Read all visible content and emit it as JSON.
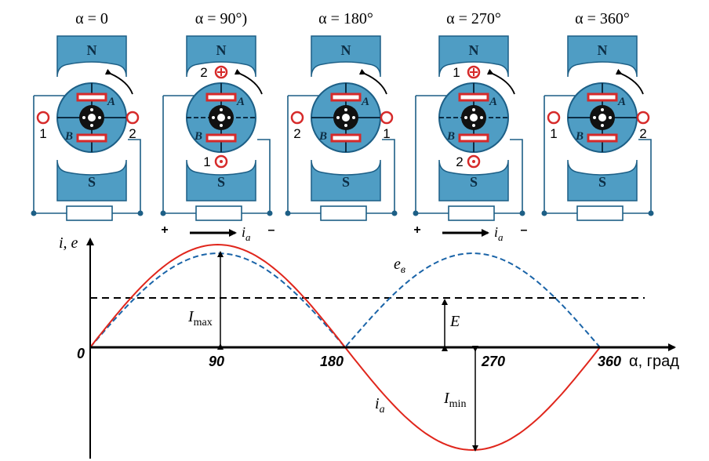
{
  "colors": {
    "machine_fill": "#4f9dc4",
    "machine_fill_light": "#7fbfe0",
    "machine_stroke": "#1d5f86",
    "wire": "#1d5f86",
    "brush": "#d62a2a",
    "current": "#e0261c",
    "emf": "#1a64a8",
    "axis": "#000000"
  },
  "panels": [
    {
      "alpha": "α = 0",
      "pole_n": "N",
      "pole_s": "S",
      "coil_a": "A",
      "coil_b": "B",
      "left_num": "1",
      "right_num": "2"
    },
    {
      "alpha": "α = 90°)",
      "pole_n": "N",
      "pole_s": "S",
      "coil_a": "A",
      "coil_b": "B",
      "top_num": "2",
      "bottom_num": "1",
      "plus": "+",
      "minus": "–",
      "current_label": "i",
      "current_sub": "a"
    },
    {
      "alpha": "α = 180°",
      "pole_n": "N",
      "pole_s": "S",
      "coil_a": "A",
      "coil_b": "B",
      "left_num": "2",
      "right_num": "1"
    },
    {
      "alpha": "α = 270°",
      "pole_n": "N",
      "pole_s": "S",
      "coil_a": "A",
      "coil_b": "B",
      "top_num": "1",
      "bottom_num": "2",
      "plus": "+",
      "minus": "–",
      "current_label": "i",
      "current_sub": "a"
    },
    {
      "alpha": "α = 360°",
      "pole_n": "N",
      "pole_s": "S",
      "coil_a": "A",
      "coil_b": "B",
      "left_num": "1",
      "right_num": "2"
    }
  ],
  "graph": {
    "y_axis_label": "i, e",
    "x_axis_label": "α, град",
    "origin_label": "0",
    "x_ticks": [
      "90",
      "180",
      "270",
      "360"
    ],
    "imax_label": "I",
    "imax_sub": "max",
    "imin_label": "I",
    "imin_sub": "min",
    "e_label": "E",
    "ev_label": "e",
    "ev_sub": "в",
    "ia_label": "i",
    "ia_sub": "a"
  }
}
